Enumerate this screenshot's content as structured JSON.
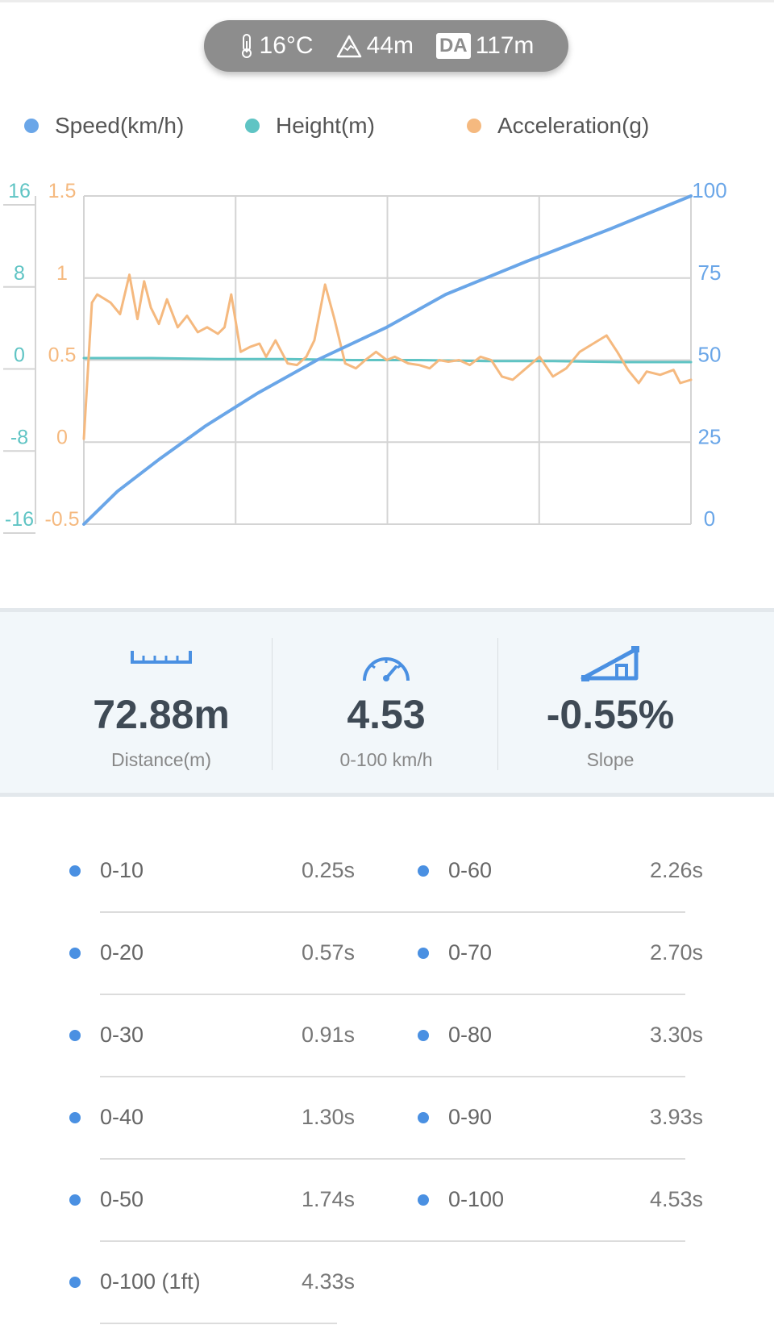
{
  "header": {
    "temperature": "16°C",
    "altitude": "44m",
    "da_badge": "DA",
    "density_altitude": "117m"
  },
  "legend": [
    {
      "label": "Speed(km/h)",
      "color": "#6aa6e8"
    },
    {
      "label": "Height(m)",
      "color": "#5fc4c4"
    },
    {
      "label": "Acceleration(g)",
      "color": "#f5b97f"
    }
  ],
  "chart_data": {
    "type": "line",
    "title": "",
    "grid": true,
    "x_range": [
      0,
      4.53
    ],
    "y_axes": {
      "height_left_outer": {
        "ticks": [
          "16",
          "8",
          "0",
          "-8",
          "-16"
        ],
        "range": [
          -16,
          16
        ],
        "color": "#5fc4c4"
      },
      "accel_left_inner": {
        "ticks": [
          "1.5",
          "1",
          "0.5",
          "0",
          "-0.5"
        ],
        "range": [
          -0.5,
          1.5
        ],
        "color": "#f5b97f"
      },
      "speed_right": {
        "ticks": [
          "100",
          "75",
          "50",
          "25",
          "0"
        ],
        "range": [
          0,
          100
        ],
        "color": "#6aa6e8"
      }
    },
    "series": [
      {
        "name": "Speed(km/h)",
        "axis": "speed_right",
        "color": "#6aa6e8",
        "x": [
          0,
          0.25,
          0.57,
          0.91,
          1.3,
          1.74,
          2.26,
          2.7,
          3.3,
          3.93,
          4.53
        ],
        "y": [
          0,
          10,
          20,
          30,
          40,
          50,
          60,
          70,
          80,
          90,
          100
        ]
      },
      {
        "name": "Height(m)",
        "axis": "height_left_outer",
        "color": "#5fc4c4",
        "x": [
          0,
          0.5,
          1.0,
          1.5,
          2.0,
          2.5,
          3.0,
          3.5,
          4.0,
          4.53
        ],
        "y": [
          0.2,
          0.2,
          0.1,
          0.1,
          0.0,
          0.0,
          -0.1,
          -0.1,
          -0.2,
          -0.2
        ]
      },
      {
        "name": "Acceleration(g)",
        "axis": "accel_left_inner",
        "color": "#f5b97f",
        "x": [
          0,
          0.06,
          0.1,
          0.2,
          0.27,
          0.34,
          0.4,
          0.45,
          0.5,
          0.56,
          0.62,
          0.7,
          0.77,
          0.85,
          0.92,
          1.0,
          1.05,
          1.1,
          1.17,
          1.24,
          1.31,
          1.36,
          1.43,
          1.52,
          1.59,
          1.66,
          1.72,
          1.8,
          1.87,
          1.95,
          2.03,
          2.1,
          2.18,
          2.26,
          2.32,
          2.42,
          2.5,
          2.58,
          2.65,
          2.72,
          2.8,
          2.88,
          2.96,
          3.04,
          3.12,
          3.2,
          3.3,
          3.4,
          3.5,
          3.6,
          3.7,
          3.8,
          3.9,
          3.98,
          4.06,
          4.14,
          4.2,
          4.3,
          4.4,
          4.45,
          4.53
        ],
        "y": [
          0.02,
          0.85,
          0.9,
          0.85,
          0.78,
          1.02,
          0.75,
          0.98,
          0.82,
          0.72,
          0.87,
          0.7,
          0.77,
          0.67,
          0.7,
          0.66,
          0.7,
          0.9,
          0.55,
          0.58,
          0.6,
          0.52,
          0.62,
          0.48,
          0.47,
          0.52,
          0.62,
          0.96,
          0.75,
          0.48,
          0.45,
          0.5,
          0.55,
          0.5,
          0.52,
          0.48,
          0.47,
          0.45,
          0.5,
          0.49,
          0.5,
          0.47,
          0.52,
          0.5,
          0.4,
          0.38,
          0.45,
          0.52,
          0.4,
          0.45,
          0.55,
          0.6,
          0.65,
          0.55,
          0.44,
          0.36,
          0.43,
          0.41,
          0.44,
          0.36,
          0.38
        ]
      }
    ]
  },
  "stats": {
    "distance": {
      "value": "72.88m",
      "label": "Distance(m)",
      "icon": "ruler-icon"
    },
    "time": {
      "value": "4.53",
      "label": "0-100 km/h",
      "icon": "speedometer-icon"
    },
    "slope": {
      "value": "-0.55%",
      "label": "Slope",
      "icon": "slope-icon"
    }
  },
  "times": [
    {
      "label": "0-10",
      "value": "0.25s"
    },
    {
      "label": "0-60",
      "value": "2.26s"
    },
    {
      "label": "0-20",
      "value": "0.57s"
    },
    {
      "label": "0-70",
      "value": "2.70s"
    },
    {
      "label": "0-30",
      "value": "0.91s"
    },
    {
      "label": "0-80",
      "value": "3.30s"
    },
    {
      "label": "0-40",
      "value": "1.30s"
    },
    {
      "label": "0-90",
      "value": "3.93s"
    },
    {
      "label": "0-50",
      "value": "1.74s"
    },
    {
      "label": "0-100",
      "value": "4.53s"
    },
    {
      "label": "0-100 (1ft)",
      "value": "4.33s"
    }
  ],
  "colors": {
    "accent": "#4a90e2",
    "stat_text": "#3f4a55"
  }
}
